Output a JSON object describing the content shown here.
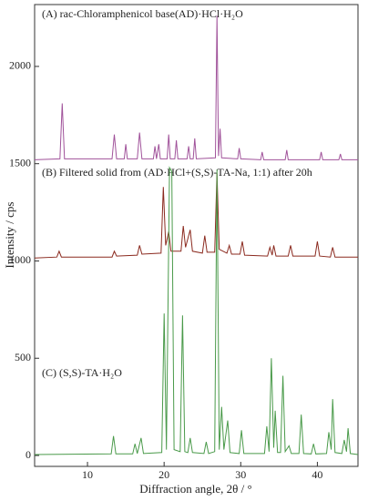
{
  "chart_data": {
    "type": "line",
    "xlabel": "Diffraction angle, 2θ / °",
    "ylabel": "Intensity / cps",
    "annotations": [
      "(A) rac-Chloramphenicol base(AD)·HCl·H₂O",
      "(B) Filtered solid from (AD·HCl+(S,S)-TA-Na, 1:1) after 20h",
      "(C) (S,S)-TA·H₂O"
    ],
    "xlim": [
      3.1,
      45.3
    ],
    "xticks": [
      10,
      20,
      30,
      40
    ],
    "ylim": [
      -56,
      2318
    ],
    "yticks": [
      0,
      500,
      1000,
      1500,
      2000
    ],
    "series": [
      {
        "name": "A",
        "color": "#a0529a",
        "x": [
          3.1,
          6.4,
          6.7,
          7.0,
          13.2,
          13.5,
          13.8,
          14.8,
          15.0,
          15.2,
          16.5,
          16.8,
          17.1,
          18.6,
          18.8,
          19.0,
          19.3,
          19.5,
          20.4,
          20.6,
          20.8,
          21.4,
          21.6,
          21.8,
          23.0,
          23.2,
          23.4,
          23.8,
          24.0,
          24.2,
          26.7,
          26.9,
          27.1,
          27.3,
          27.5,
          29.6,
          29.8,
          30.0,
          32.6,
          32.8,
          33.0,
          35.8,
          36.0,
          36.2,
          40.3,
          40.5,
          40.7,
          42.8,
          43.0,
          43.2,
          45.3
        ],
        "values": [
          1520,
          1525,
          1810,
          1525,
          1525,
          1650,
          1525,
          1525,
          1600,
          1525,
          1525,
          1660,
          1525,
          1525,
          1590,
          1525,
          1600,
          1525,
          1525,
          1650,
          1525,
          1525,
          1620,
          1525,
          1525,
          1590,
          1525,
          1525,
          1630,
          1525,
          1530,
          2260,
          1540,
          1680,
          1530,
          1525,
          1580,
          1525,
          1520,
          1560,
          1520,
          1520,
          1570,
          1520,
          1520,
          1560,
          1520,
          1520,
          1550,
          1520,
          1520
        ]
      },
      {
        "name": "B",
        "color": "#8b2a1f",
        "x": [
          3.1,
          6.0,
          6.3,
          6.6,
          13.2,
          13.5,
          13.8,
          16.5,
          16.8,
          17.1,
          19.6,
          19.9,
          20.2,
          20.6,
          20.9,
          22.2,
          22.5,
          22.8,
          23.4,
          23.7,
          25.0,
          25.3,
          25.6,
          26.6,
          26.9,
          27.2,
          28.2,
          28.5,
          28.8,
          29.9,
          30.2,
          30.5,
          33.5,
          33.8,
          34.1,
          34.3,
          34.6,
          36.2,
          36.5,
          36.8,
          39.7,
          40.0,
          40.3,
          41.7,
          42.0,
          42.3,
          45.3
        ],
        "values": [
          1015,
          1020,
          1050,
          1020,
          1020,
          1050,
          1025,
          1030,
          1080,
          1035,
          1040,
          1380,
          1080,
          1150,
          1050,
          1050,
          1180,
          1070,
          1160,
          1050,
          1040,
          1130,
          1045,
          1045,
          1450,
          1060,
          1040,
          1080,
          1035,
          1035,
          1100,
          1030,
          1025,
          1070,
          1030,
          1080,
          1025,
          1025,
          1080,
          1025,
          1025,
          1100,
          1025,
          1020,
          1070,
          1020,
          1020
        ]
      },
      {
        "name": "C",
        "color": "#4a9a4a",
        "x": [
          3.1,
          13.1,
          13.4,
          13.7,
          15.9,
          16.2,
          16.5,
          17.0,
          17.3,
          19.7,
          20.0,
          20.3,
          20.7,
          21.0,
          21.3,
          22.1,
          22.4,
          22.7,
          23.1,
          23.4,
          23.7,
          25.2,
          25.5,
          25.8,
          26.6,
          26.9,
          27.2,
          27.5,
          27.8,
          28.3,
          28.6,
          29.8,
          30.1,
          30.4,
          33.1,
          33.4,
          33.7,
          34.0,
          34.3,
          34.5,
          34.8,
          35.2,
          35.5,
          35.8,
          36.3,
          36.6,
          37.6,
          37.9,
          38.2,
          39.2,
          39.5,
          39.8,
          41.2,
          41.5,
          41.8,
          42.0,
          42.3,
          43.2,
          43.5,
          43.8,
          44.0,
          44.3,
          45.3
        ],
        "values": [
          5,
          8,
          100,
          8,
          8,
          60,
          10,
          90,
          10,
          15,
          730,
          30,
          1480,
          1460,
          30,
          20,
          720,
          20,
          15,
          90,
          15,
          10,
          70,
          10,
          20,
          1470,
          30,
          250,
          30,
          180,
          15,
          10,
          130,
          10,
          10,
          150,
          20,
          500,
          40,
          230,
          15,
          15,
          410,
          20,
          50,
          10,
          10,
          210,
          10,
          8,
          60,
          8,
          10,
          120,
          30,
          290,
          15,
          10,
          80,
          20,
          140,
          10,
          5
        ]
      }
    ]
  }
}
